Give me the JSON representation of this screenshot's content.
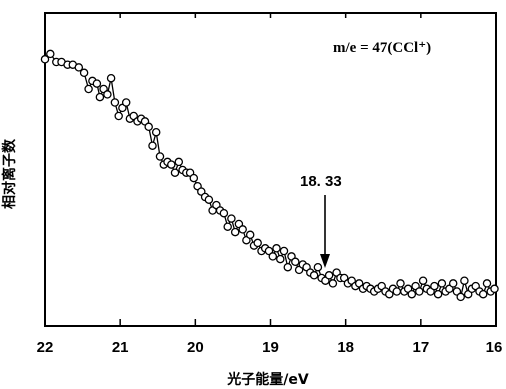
{
  "chart_data": {
    "type": "scatter",
    "xlabel": "光子能量/eV",
    "ylabel": "相对离子数",
    "xlim": [
      22,
      16
    ],
    "x_reversed": true,
    "y_ticks": false,
    "legend": {
      "text": "m/e = 47(CCl⁺)",
      "placement": "top-right"
    },
    "x_ticks": [
      "22",
      "21",
      "20",
      "19",
      "18",
      "17",
      "16"
    ],
    "x_tick_values": [
      22,
      21,
      20,
      19,
      18,
      17,
      16
    ],
    "ylim": [
      0,
      1
    ],
    "annotation": {
      "text": "18. 33",
      "x": 18.33
    },
    "series": [
      {
        "marker": "open-circle",
        "connected": true,
        "x": [
          22.0,
          21.93,
          21.85,
          21.78,
          21.7,
          21.63,
          21.55,
          21.48,
          21.42,
          21.37,
          21.31,
          21.27,
          21.22,
          21.17,
          21.12,
          21.07,
          21.02,
          20.97,
          20.92,
          20.87,
          20.82,
          20.77,
          20.72,
          20.67,
          20.62,
          20.57,
          20.52,
          20.47,
          20.42,
          20.37,
          20.32,
          20.27,
          20.22,
          20.17,
          20.12,
          20.07,
          20.02,
          19.97,
          19.92,
          19.87,
          19.82,
          19.77,
          19.72,
          19.67,
          19.62,
          19.57,
          19.52,
          19.47,
          19.42,
          19.37,
          19.32,
          19.27,
          19.22,
          19.17,
          19.12,
          19.07,
          19.02,
          18.97,
          18.92,
          18.87,
          18.82,
          18.77,
          18.72,
          18.67,
          18.62,
          18.57,
          18.52,
          18.47,
          18.42,
          18.37,
          18.32,
          18.27,
          18.22,
          18.17,
          18.12,
          18.07,
          18.02,
          17.97,
          17.92,
          17.87,
          17.82,
          17.77,
          17.72,
          17.67,
          17.62,
          17.57,
          17.52,
          17.47,
          17.42,
          17.37,
          17.32,
          17.27,
          17.22,
          17.17,
          17.12,
          17.07,
          17.02,
          16.97,
          16.92,
          16.87,
          16.82,
          16.77,
          16.72,
          16.67,
          16.62,
          16.57,
          16.52,
          16.47,
          16.42,
          16.37,
          16.32,
          16.27,
          16.22,
          16.17,
          16.12,
          16.07,
          16.02
        ],
        "y": [
          0.91,
          0.93,
          0.9,
          0.9,
          0.89,
          0.89,
          0.88,
          0.86,
          0.8,
          0.83,
          0.82,
          0.77,
          0.8,
          0.78,
          0.84,
          0.75,
          0.7,
          0.73,
          0.75,
          0.69,
          0.7,
          0.68,
          0.69,
          0.68,
          0.66,
          0.59,
          0.64,
          0.55,
          0.52,
          0.53,
          0.52,
          0.49,
          0.53,
          0.5,
          0.49,
          0.49,
          0.47,
          0.44,
          0.42,
          0.4,
          0.39,
          0.35,
          0.37,
          0.35,
          0.34,
          0.29,
          0.32,
          0.27,
          0.3,
          0.28,
          0.24,
          0.26,
          0.22,
          0.23,
          0.2,
          0.21,
          0.2,
          0.18,
          0.21,
          0.17,
          0.2,
          0.14,
          0.18,
          0.16,
          0.13,
          0.15,
          0.14,
          0.12,
          0.11,
          0.14,
          0.1,
          0.09,
          0.11,
          0.08,
          0.12,
          0.1,
          0.1,
          0.08,
          0.09,
          0.07,
          0.08,
          0.06,
          0.07,
          0.06,
          0.05,
          0.06,
          0.07,
          0.05,
          0.04,
          0.06,
          0.05,
          0.08,
          0.05,
          0.06,
          0.04,
          0.07,
          0.05,
          0.09,
          0.06,
          0.05,
          0.07,
          0.04,
          0.08,
          0.05,
          0.06,
          0.08,
          0.05,
          0.03,
          0.09,
          0.04,
          0.06,
          0.07,
          0.05,
          0.04,
          0.08,
          0.05,
          0.06
        ]
      }
    ]
  }
}
